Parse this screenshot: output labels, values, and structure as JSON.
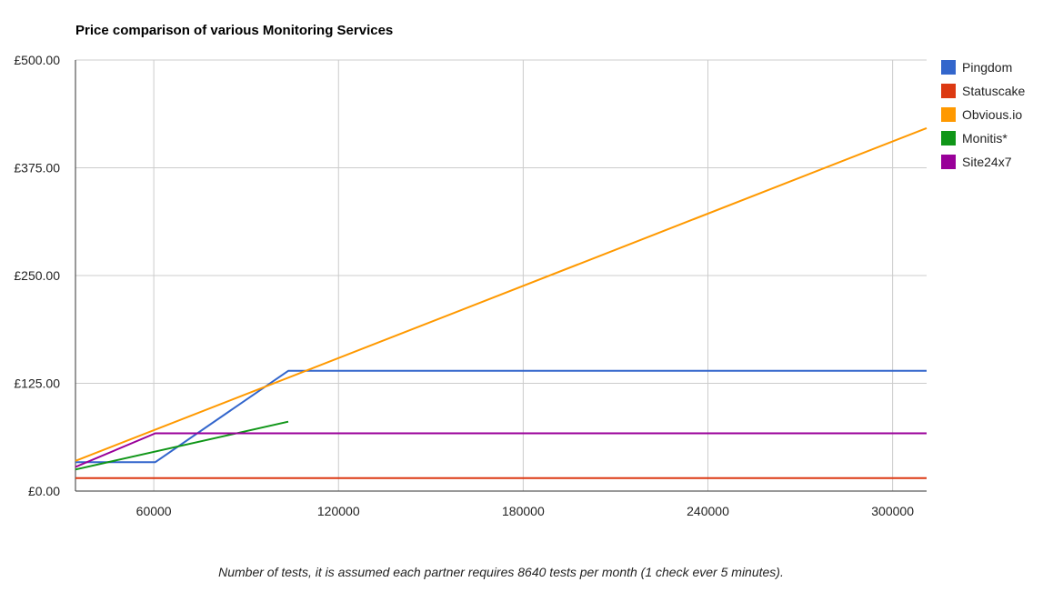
{
  "chart_data": {
    "type": "line",
    "title": "Price comparison of various Monitoring Services",
    "xlabel": "Number of tests, it is assumed each partner requires 8640 tests per month (1 check ever 5 minutes).",
    "ylabel": "",
    "xlim": [
      34560,
      311040
    ],
    "ylim": [
      0,
      500
    ],
    "x_ticks": [
      {
        "value": 60000,
        "label": "60000"
      },
      {
        "value": 120000,
        "label": "120000"
      },
      {
        "value": 180000,
        "label": "180000"
      },
      {
        "value": 240000,
        "label": "240000"
      },
      {
        "value": 300000,
        "label": "300000"
      }
    ],
    "y_ticks": [
      {
        "value": 0,
        "label": "£0.00"
      },
      {
        "value": 125,
        "label": "£125.00"
      },
      {
        "value": 250,
        "label": "£250.00"
      },
      {
        "value": 375,
        "label": "£375.00"
      },
      {
        "value": 500,
        "label": "£500.00"
      }
    ],
    "grid": true,
    "legend_position": "right",
    "series": [
      {
        "name": "Pingdom",
        "color": "#3366cc",
        "points": [
          [
            34560,
            33.5
          ],
          [
            60480,
            33.5
          ],
          [
            103680,
            139.5
          ],
          [
            311040,
            139.5
          ]
        ]
      },
      {
        "name": "Statuscake",
        "color": "#dc3912",
        "points": [
          [
            34560,
            15
          ],
          [
            311040,
            15
          ]
        ]
      },
      {
        "name": "Obvious.io",
        "color": "#ff9900",
        "points": [
          [
            34560,
            35
          ],
          [
            311040,
            421
          ]
        ]
      },
      {
        "name": "Monitis*",
        "color": "#109618",
        "points": [
          [
            34560,
            25
          ],
          [
            103680,
            80.5
          ]
        ]
      },
      {
        "name": "Site24x7",
        "color": "#990099",
        "points": [
          [
            34560,
            28
          ],
          [
            60480,
            67
          ],
          [
            311040,
            67
          ]
        ]
      }
    ]
  }
}
